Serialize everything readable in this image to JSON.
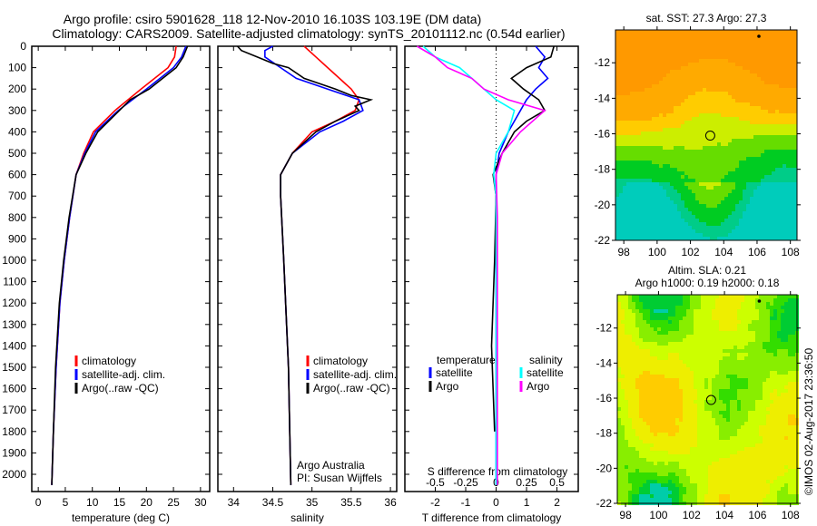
{
  "title_line1": "Argo profile: csiro 5901628_118 12-Nov-2010 16.103S 103.19E (DM data)",
  "title_line2": "Climatology: CARS2009. Satellite-adjusted climatology: synTS_20101112.nc (0.54d earlier)",
  "colors": {
    "climatology": "#ff0000",
    "satellite": "#0000ff",
    "argo": "#000000",
    "sal_satellite": "#00ffff",
    "sal_argo": "#ff00ff"
  },
  "chart_data": [
    {
      "type": "line",
      "id": "temperature",
      "xlabel": "temperature (deg C)",
      "ylabel": "",
      "xlim": [
        -1.2,
        31.7
      ],
      "ylim": [
        2080,
        0
      ],
      "xticks": [
        0,
        5,
        10,
        15,
        20,
        25,
        30
      ],
      "yticks": [
        0,
        100,
        200,
        300,
        400,
        500,
        600,
        700,
        800,
        900,
        1000,
        1100,
        1200,
        1300,
        1400,
        1500,
        1600,
        1700,
        1800,
        1900,
        2000
      ],
      "legend": [
        "climatology",
        "satellite-adj. clim.",
        "Argo(..raw -QC)"
      ],
      "series": [
        {
          "name": "climatology",
          "depth": [
            0,
            50,
            100,
            200,
            300,
            400,
            500,
            600,
            800,
            1000,
            1200,
            1500,
            1800,
            2050
          ],
          "values": [
            25.5,
            25.2,
            24,
            19,
            14.2,
            10.2,
            8.4,
            7,
            5.8,
            4.8,
            4,
            3.3,
            2.8,
            2.5
          ]
        },
        {
          "name": "satellite-adj. clim.",
          "depth": [
            0,
            50,
            100,
            200,
            300,
            400,
            500,
            600,
            800,
            1000,
            1200,
            1500,
            1800,
            2050
          ],
          "values": [
            27.3,
            26.5,
            25,
            20,
            14.8,
            10.6,
            8.6,
            7,
            5.8,
            4.8,
            4,
            3.3,
            2.8,
            2.5
          ]
        },
        {
          "name": "Argo(..raw -QC)",
          "depth": [
            0,
            50,
            100,
            150,
            200,
            250,
            300,
            400,
            500,
            600,
            800,
            1000,
            1200,
            1500,
            1800,
            2050
          ],
          "values": [
            27.6,
            26.8,
            25.5,
            23,
            20.5,
            17,
            15,
            11,
            8.8,
            7,
            5.7,
            4.7,
            3.9,
            3.2,
            2.8,
            2.5
          ]
        }
      ]
    },
    {
      "type": "line",
      "id": "salinity",
      "xlabel": "salinity",
      "xlim": [
        33.8,
        36.08
      ],
      "ylim": [
        2080,
        0
      ],
      "xticks": [
        34,
        34.5,
        35,
        35.5,
        36
      ],
      "legend": [
        "climatology",
        "satellite-adj. clim.",
        "Argo(..raw -QC)"
      ],
      "annotation": [
        "Argo Australia",
        "PI: Susan Wijffels"
      ],
      "series": [
        {
          "name": "climatology",
          "depth": [
            0,
            50,
            100,
            150,
            200,
            250,
            300,
            350,
            400,
            500,
            600,
            700,
            1000,
            1500,
            2050
          ],
          "values": [
            34.9,
            35.05,
            35.2,
            35.35,
            35.5,
            35.6,
            35.55,
            35.3,
            35.0,
            34.75,
            34.6,
            34.6,
            34.64,
            34.7,
            34.73
          ]
        },
        {
          "name": "satellite-adj. clim.",
          "depth": [
            0,
            20,
            50,
            100,
            150,
            200,
            250,
            300,
            350,
            400,
            500,
            600,
            700,
            1000,
            1500,
            2050
          ],
          "values": [
            34.5,
            34.4,
            34.4,
            34.6,
            34.8,
            35.2,
            35.6,
            35.65,
            35.4,
            35.1,
            34.75,
            34.6,
            34.6,
            34.64,
            34.7,
            34.73
          ]
        },
        {
          "name": "Argo(..raw -QC)",
          "depth": [
            0,
            20,
            50,
            80,
            100,
            150,
            200,
            230,
            250,
            280,
            300,
            350,
            400,
            500,
            600,
            700,
            1000,
            1500,
            2050
          ],
          "values": [
            34.05,
            34.1,
            34.3,
            34.5,
            34.7,
            34.9,
            35.3,
            35.5,
            35.75,
            35.55,
            35.6,
            35.3,
            35.05,
            34.75,
            34.6,
            34.6,
            34.64,
            34.7,
            34.73
          ]
        }
      ]
    },
    {
      "type": "line",
      "id": "difference",
      "xlabel": "T difference from climatology",
      "xlabel2": "S difference from climatology",
      "xlim": [
        -3,
        2.7
      ],
      "xticks": [
        -2,
        -1,
        0,
        1,
        2
      ],
      "s_xlim": [
        -0.75,
        0.675
      ],
      "s_xticks": [
        -0.5,
        -0.25,
        0,
        0.25,
        0.5
      ],
      "legend_t": [
        "temperature",
        "satellite",
        "Argo"
      ],
      "legend_s": [
        "salinity",
        "satellite",
        "Argo"
      ],
      "series": [
        {
          "name": "T satellite",
          "axis": "T",
          "depth": [
            0,
            50,
            100,
            150,
            200,
            250,
            300,
            400,
            500,
            600,
            800,
            1000,
            2050
          ],
          "values": [
            1.3,
            1.6,
            1.4,
            1.7,
            1.3,
            1.0,
            0.8,
            0.4,
            0.1,
            0,
            0,
            0,
            0
          ]
        },
        {
          "name": "T Argo",
          "axis": "T",
          "depth": [
            0,
            50,
            100,
            150,
            200,
            250,
            300,
            350,
            400,
            500,
            600,
            700,
            1000,
            1400,
            1600,
            1800
          ],
          "values": [
            1.9,
            1.8,
            1.0,
            0.5,
            0.9,
            1.4,
            1.6,
            1.0,
            0.6,
            0.2,
            -0.1,
            0,
            -0.05,
            -0.15,
            -0.1,
            -0.05
          ]
        },
        {
          "name": "S satellite",
          "axis": "S",
          "depth": [
            0,
            50,
            100,
            150,
            200,
            250,
            300,
            400,
            500,
            600,
            700,
            1000,
            2050
          ],
          "values": [
            -0.6,
            -0.5,
            -0.3,
            -0.2,
            -0.1,
            0.0,
            0.15,
            0.1,
            0.0,
            -0.02,
            0,
            0,
            0
          ]
        },
        {
          "name": "S Argo",
          "axis": "S",
          "depth": [
            0,
            50,
            100,
            150,
            200,
            250,
            300,
            400,
            500,
            600,
            800,
            2050
          ],
          "values": [
            -0.65,
            -0.5,
            -0.4,
            -0.2,
            -0.1,
            0.1,
            0.4,
            0.2,
            0.05,
            0,
            0.01,
            0.01
          ]
        }
      ]
    },
    {
      "type": "heatmap",
      "id": "sst_map",
      "title": "sat. SST: 27.3 Argo: 27.3",
      "xlim": [
        97.5,
        108.4
      ],
      "ylim": [
        -22,
        -10.15
      ],
      "xticks": [
        98,
        100,
        102,
        104,
        106,
        108
      ],
      "yticks": [
        -12,
        -14,
        -16,
        -18,
        -20,
        -22
      ],
      "argo_position": [
        103.19,
        -16.103
      ]
    },
    {
      "type": "heatmap",
      "id": "sla_map",
      "title": "Altim. SLA: 0.21",
      "subtitle": "Argo h1000: 0.19 h2000: 0.18",
      "xlim": [
        97.5,
        108.4
      ],
      "ylim": [
        -22,
        -10.1
      ],
      "xticks": [
        98,
        100,
        102,
        104,
        106,
        108
      ],
      "yticks": [
        -12,
        -14,
        -16,
        -18,
        -20,
        -22
      ],
      "argo_position": [
        103.19,
        -16.103
      ]
    }
  ],
  "credit": "©IMOS 02-Aug-2017 23:36:50"
}
